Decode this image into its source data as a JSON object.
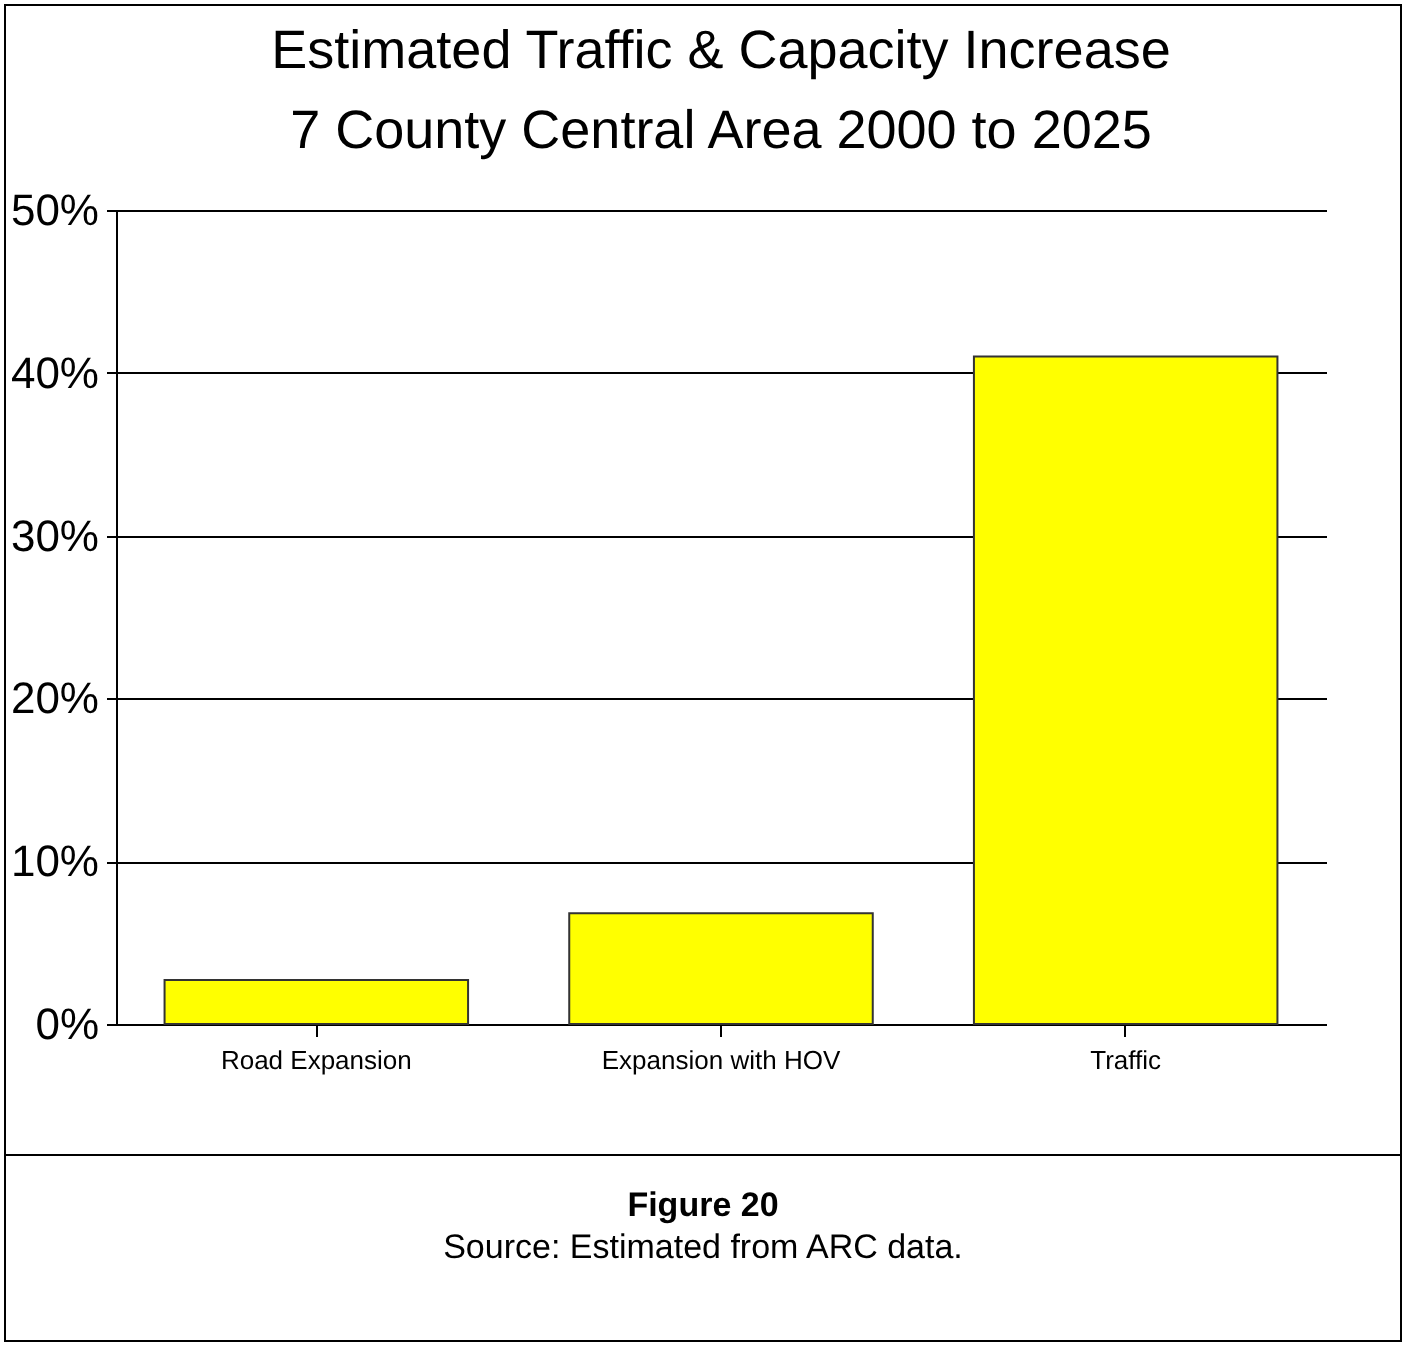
{
  "chart_data": {
    "type": "bar",
    "title": "Estimated Traffic & Capacity Increase",
    "subtitle": "7 County Central  Area 2000 to 2025",
    "categories": [
      "Road Expansion",
      "Expansion with HOV",
      "Traffic"
    ],
    "values": [
      2.7,
      6.8,
      41
    ],
    "color": "#ffff00",
    "ylim": [
      0,
      50
    ],
    "yticks": [
      {
        "value": 0,
        "label": "0%"
      },
      {
        "value": 10,
        "label": "10%"
      },
      {
        "value": 20,
        "label": "20%"
      },
      {
        "value": 30,
        "label": "30%"
      },
      {
        "value": 40,
        "label": "40%"
      },
      {
        "value": 50,
        "label": "50%"
      }
    ],
    "grid": "y",
    "annotations": [
      "Figure 20",
      "Source: Estimated from ARC data."
    ]
  }
}
